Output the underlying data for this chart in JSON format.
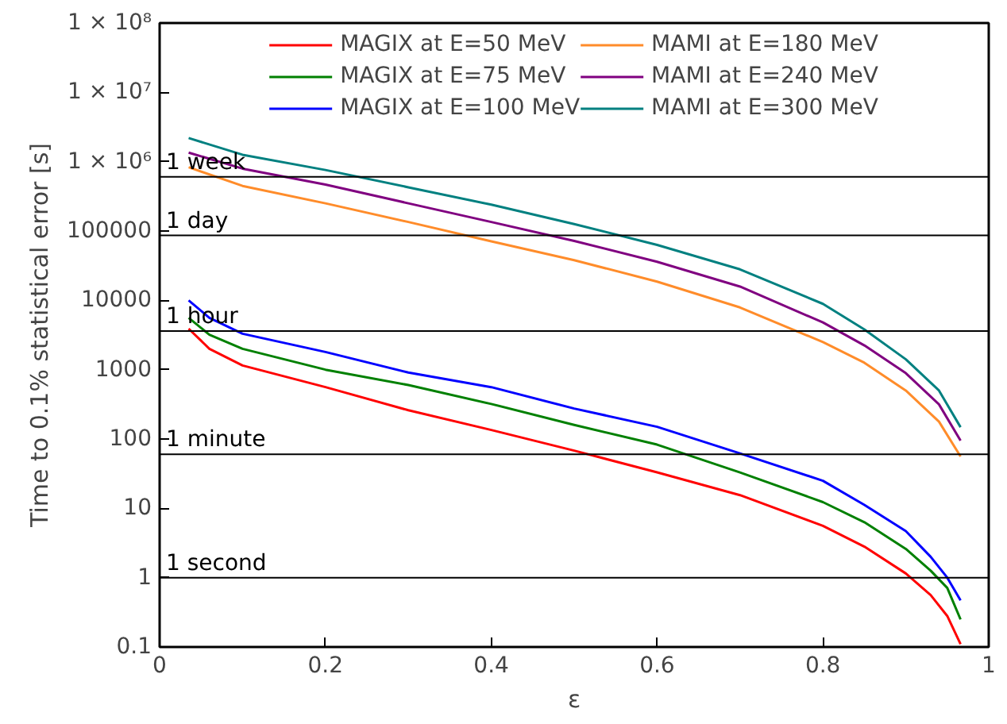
{
  "chart_data": {
    "type": "line",
    "xlabel": "ε",
    "ylabel": "Time to 0.1% statistical error [s]",
    "log": "y",
    "xlim": [
      0,
      1
    ],
    "xticks": [
      0,
      0.2,
      0.4,
      0.6,
      0.8,
      1
    ],
    "ylim": [
      0.1,
      100000000
    ],
    "yticks": [
      0.1,
      1,
      10,
      100,
      1000,
      10000,
      100000,
      {
        "value": 1000000,
        "label": "1 × 10⁶"
      },
      {
        "value": 10000000,
        "label": "1 × 10⁷"
      },
      {
        "value": 100000000,
        "label": "1 × 10⁸"
      }
    ],
    "grid": false,
    "legend": "top",
    "line_style": "solid",
    "marker": "none",
    "series": [
      {
        "name": "MAGIX at E=50 MeV",
        "color": "#ff0000",
        "x": [
          0.035,
          0.06,
          0.1,
          0.2,
          0.3,
          0.4,
          0.5,
          0.6,
          0.7,
          0.8,
          0.85,
          0.9,
          0.93,
          0.95,
          0.966
        ],
        "values": [
          3900,
          2000,
          1150,
          560,
          260,
          135,
          68,
          33,
          15.5,
          5.6,
          2.8,
          1.15,
          0.56,
          0.28,
          0.11
        ]
      },
      {
        "name": "MAGIX at E=75 MeV",
        "color": "#008000",
        "x": [
          0.035,
          0.06,
          0.1,
          0.2,
          0.3,
          0.4,
          0.5,
          0.6,
          0.7,
          0.8,
          0.85,
          0.9,
          0.93,
          0.95,
          0.966
        ],
        "values": [
          5600,
          3200,
          2000,
          1000,
          600,
          320,
          160,
          83,
          33,
          12.3,
          6.3,
          2.6,
          1.26,
          0.71,
          0.25
        ]
      },
      {
        "name": "MAGIX at E=100 MeV",
        "color": "#0000ff",
        "x": [
          0.035,
          0.06,
          0.1,
          0.2,
          0.3,
          0.4,
          0.5,
          0.6,
          0.7,
          0.8,
          0.85,
          0.9,
          0.93,
          0.95,
          0.966
        ],
        "values": [
          10000,
          5600,
          3300,
          1800,
          910,
          560,
          275,
          150,
          62,
          25,
          11.2,
          4.7,
          2.0,
          1.0,
          0.47
        ]
      },
      {
        "name": "MAMI at E=180 MeV",
        "color": "#ff8c2a",
        "x": [
          0.035,
          0.1,
          0.2,
          0.3,
          0.4,
          0.5,
          0.6,
          0.7,
          0.8,
          0.85,
          0.9,
          0.94,
          0.966
        ],
        "values": [
          832000,
          447000,
          251000,
          135000,
          71000,
          38000,
          18600,
          7900,
          2500,
          1260,
          500,
          178,
          56
        ]
      },
      {
        "name": "MAMI at E=240 MeV",
        "color": "#800080",
        "x": [
          0.035,
          0.1,
          0.2,
          0.3,
          0.4,
          0.5,
          0.6,
          0.7,
          0.8,
          0.85,
          0.9,
          0.94,
          0.966
        ],
        "values": [
          1350000,
          794000,
          468000,
          251000,
          135000,
          72000,
          36000,
          15800,
          4800,
          2240,
          890,
          316,
          95
        ]
      },
      {
        "name": "MAMI at E=300 MeV",
        "color": "#008080",
        "x": [
          0.035,
          0.1,
          0.2,
          0.3,
          0.4,
          0.5,
          0.6,
          0.7,
          0.8,
          0.85,
          0.9,
          0.94,
          0.966
        ],
        "values": [
          2190000,
          1260000,
          759000,
          427000,
          240000,
          126000,
          63000,
          28000,
          8900,
          3800,
          1410,
          500,
          148
        ]
      }
    ],
    "ref_lines": [
      {
        "axis": "y",
        "value": 604800,
        "label": "1 week",
        "color": "#000000"
      },
      {
        "axis": "y",
        "value": 86400,
        "label": "1 day",
        "color": "#000000"
      },
      {
        "axis": "y",
        "value": 3600,
        "label": "1 hour",
        "color": "#000000"
      },
      {
        "axis": "y",
        "value": 60,
        "label": "1 minute",
        "color": "#000000"
      },
      {
        "axis": "y",
        "value": 1,
        "label": "1 second",
        "color": "#000000"
      }
    ]
  }
}
